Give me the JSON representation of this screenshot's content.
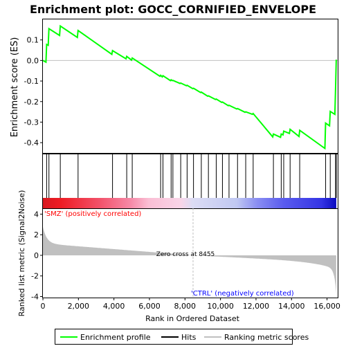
{
  "chart_data": {
    "type": "line",
    "title": "Enrichment plot: GOCC_CORNIFIED_ENVELOPE",
    "xlabel": "Rank in Ordered Dataset",
    "top_ylabel": "Enrichment score (ES)",
    "bottom_ylabel": "Ranked list metric (Signal2Noise)",
    "x_range": [
      0,
      16600
    ],
    "x_ticks": [
      0,
      2000,
      4000,
      6000,
      8000,
      10000,
      12000,
      14000,
      16000
    ],
    "x_tick_labels": [
      "0",
      "2,000",
      "4,000",
      "6,000",
      "8,000",
      "10,000",
      "12,000",
      "14,000",
      "16,000"
    ],
    "es_range": [
      -0.45,
      0.2
    ],
    "es_ticks": [
      -0.4,
      -0.3,
      -0.2,
      -0.1,
      0.0,
      0.1
    ],
    "es_tick_labels": [
      "-0.4",
      "-0.3",
      "-0.2",
      "-0.1",
      "0.0",
      "0.1"
    ],
    "metric_range": [
      -4.1,
      4.5
    ],
    "metric_ticks": [
      -4,
      -2,
      0,
      2,
      4
    ],
    "metric_tick_labels": [
      "-4",
      "-2",
      "0",
      "2",
      "4"
    ],
    "zero_cross_label": "Zero cross at 8455",
    "zero_cross_rank": 8455,
    "positive_label": "'SMZ' (positively correlated)",
    "negative_label": "'CTRL' (negatively correlated)",
    "hits": [
      210,
      340,
      980,
      1980,
      3920,
      4720,
      5030,
      6630,
      6760,
      7220,
      7320,
      7760,
      8120,
      8480,
      8920,
      9320,
      9760,
      10110,
      10480,
      10960,
      11420,
      11840,
      12980,
      13420,
      13560,
      13920,
      14460,
      15920,
      16180,
      16480,
      16520
    ],
    "es_points": [
      [
        0,
        0.0
      ],
      [
        170,
        -0.008
      ],
      [
        210,
        0.078
      ],
      [
        300,
        0.074
      ],
      [
        340,
        0.155
      ],
      [
        940,
        0.122
      ],
      [
        980,
        0.168
      ],
      [
        1940,
        0.112
      ],
      [
        1980,
        0.146
      ],
      [
        3880,
        0.03
      ],
      [
        3920,
        0.048
      ],
      [
        4680,
        0.008
      ],
      [
        4720,
        0.02
      ],
      [
        4990,
        0.002
      ],
      [
        5030,
        0.012
      ],
      [
        6590,
        -0.077
      ],
      [
        6630,
        -0.072
      ],
      [
        6720,
        -0.08
      ],
      [
        6760,
        -0.074
      ],
      [
        7180,
        -0.098
      ],
      [
        7220,
        -0.094
      ],
      [
        7280,
        -0.098
      ],
      [
        7320,
        -0.097
      ],
      [
        7720,
        -0.112
      ],
      [
        7760,
        -0.11
      ],
      [
        8080,
        -0.123
      ],
      [
        8120,
        -0.121
      ],
      [
        8440,
        -0.137
      ],
      [
        8480,
        -0.135
      ],
      [
        8880,
        -0.156
      ],
      [
        8920,
        -0.154
      ],
      [
        9280,
        -0.174
      ],
      [
        9320,
        -0.172
      ],
      [
        9720,
        -0.19
      ],
      [
        9760,
        -0.188
      ],
      [
        10070,
        -0.204
      ],
      [
        10110,
        -0.202
      ],
      [
        10440,
        -0.22
      ],
      [
        10480,
        -0.218
      ],
      [
        10920,
        -0.236
      ],
      [
        10960,
        -0.234
      ],
      [
        11380,
        -0.252
      ],
      [
        11420,
        -0.25
      ],
      [
        11800,
        -0.262
      ],
      [
        11840,
        -0.258
      ],
      [
        12940,
        -0.372
      ],
      [
        12980,
        -0.358
      ],
      [
        13380,
        -0.374
      ],
      [
        13420,
        -0.358
      ],
      [
        13520,
        -0.362
      ],
      [
        13560,
        -0.344
      ],
      [
        13880,
        -0.355
      ],
      [
        13920,
        -0.335
      ],
      [
        14420,
        -0.37
      ],
      [
        14460,
        -0.34
      ],
      [
        15880,
        -0.428
      ],
      [
        15920,
        -0.305
      ],
      [
        16140,
        -0.318
      ],
      [
        16180,
        -0.248
      ],
      [
        16440,
        -0.262
      ],
      [
        16480,
        -0.138
      ],
      [
        16520,
        0.004
      ]
    ],
    "legend": [
      "Enrichment profile",
      "Hits",
      "Ranking metric scores"
    ],
    "colors": {
      "profile": "#00ff00",
      "hits": "#000000",
      "metric_fill": "#c0c0c0",
      "positive_text": "#ff0000",
      "negative_text": "#0000ff",
      "zero_line": "#c0c0c0"
    }
  }
}
